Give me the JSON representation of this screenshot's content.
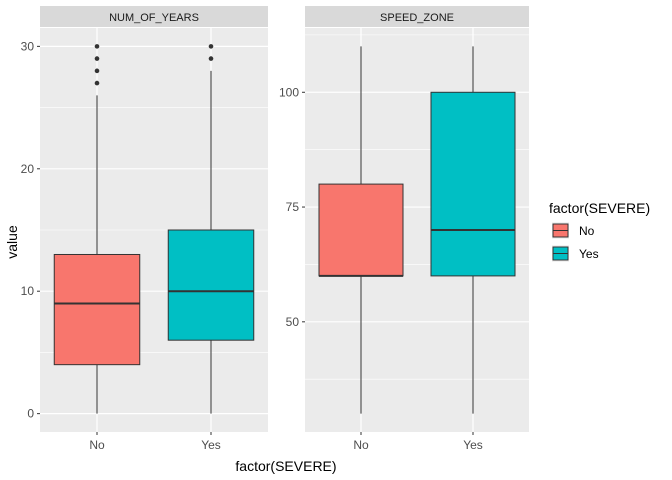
{
  "chart_data": {
    "type": "boxplot",
    "x_label": "factor(SEVERE)",
    "y_label": "value",
    "categories": [
      "No",
      "Yes"
    ],
    "legend": {
      "title": "factor(SEVERE)",
      "placement": "right",
      "entries": [
        {
          "label": "No",
          "color": "#F8766D"
        },
        {
          "label": "Yes",
          "color": "#00BFC4"
        }
      ]
    },
    "facets": [
      {
        "name": "NUM_OF_YEARS",
        "y_range": [
          -1.5,
          31.5
        ],
        "y_ticks": [
          0,
          10,
          20,
          30
        ],
        "boxes": [
          {
            "category": "No",
            "min": 0,
            "q1": 4,
            "median": 9,
            "q3": 13,
            "max": 26,
            "outliers": [
              27,
              28,
              29,
              30
            ]
          },
          {
            "category": "Yes",
            "min": 0,
            "q1": 6,
            "median": 10,
            "q3": 15,
            "max": 28,
            "outliers": [
              29,
              30
            ]
          }
        ]
      },
      {
        "name": "SPEED_ZONE",
        "y_range": [
          26,
          114
        ],
        "y_ticks": [
          50,
          75,
          100
        ],
        "boxes": [
          {
            "category": "No",
            "min": 30,
            "q1": 60,
            "median": 60,
            "q3": 80,
            "max": 110,
            "outliers": []
          },
          {
            "category": "Yes",
            "min": 30,
            "q1": 60,
            "median": 70,
            "q3": 100,
            "max": 110,
            "outliers": []
          }
        ]
      }
    ]
  }
}
